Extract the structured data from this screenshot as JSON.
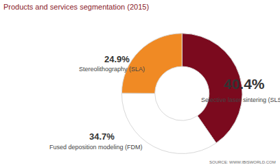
{
  "chart_data": {
    "type": "pie",
    "title": "Products and services segmentation (2015)",
    "categories": [
      "Selective laser sintering (SLS)",
      "Fused deposition modeling (FDM)",
      "Stereolithography (SLA)"
    ],
    "values": [
      40.4,
      34.7,
      24.9
    ],
    "value_labels": [
      "40.4%",
      "34.7%",
      "24.9%"
    ],
    "colors": [
      "#7b0a1e",
      "#ffffff",
      "#f08a24"
    ],
    "data_labels": true,
    "annotations": [
      "SOURCE: WWW.IBISWORLD.COM"
    ]
  }
}
